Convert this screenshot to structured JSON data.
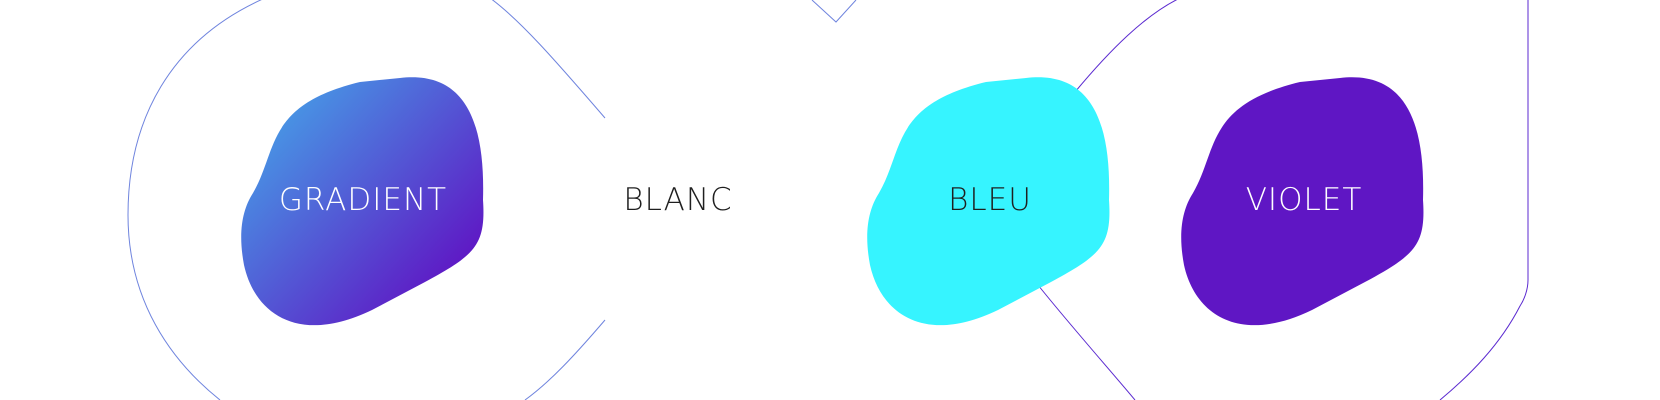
{
  "swatches": [
    {
      "name": "gradient",
      "label": "GRADIENT",
      "fill": "gradient",
      "gradient_stops": [
        "#45a4e8",
        "#5f16c4"
      ],
      "text_color": "#ffffff"
    },
    {
      "name": "blanc",
      "label": "BLANC",
      "fill": "#ffffff",
      "text_color": "#1f1f1f"
    },
    {
      "name": "bleu",
      "label": "BLEU",
      "fill": "#36f4ff",
      "text_color": "#1f1f1f"
    },
    {
      "name": "violet",
      "label": "VIOLET",
      "fill": "#5f16c4",
      "text_color": "#ffffff"
    }
  ],
  "colors": {
    "outline_left": "#6f84de",
    "outline_right": "#5b2ad0",
    "background": "#ffffff"
  }
}
